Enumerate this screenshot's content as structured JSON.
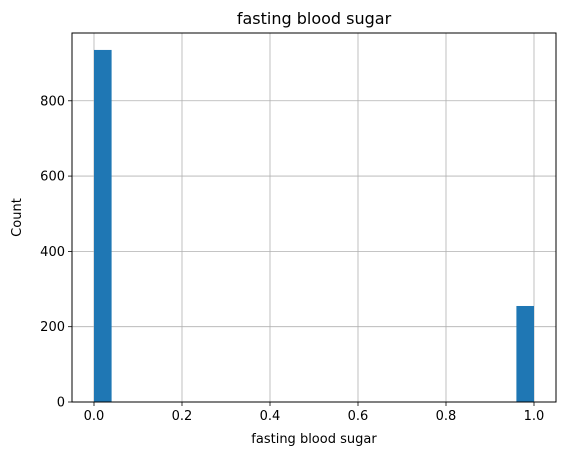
{
  "chart_data": {
    "type": "bar",
    "title": "fasting blood sugar",
    "xlabel": "fasting blood sugar",
    "ylabel": "Count",
    "xlim": [
      -0.05,
      1.05
    ],
    "ylim": [
      0,
      980
    ],
    "xticks": [
      0.0,
      0.2,
      0.4,
      0.6,
      0.8,
      1.0
    ],
    "xtick_labels": [
      "0.0",
      "0.2",
      "0.4",
      "0.6",
      "0.8",
      "1.0"
    ],
    "yticks": [
      0,
      200,
      400,
      600,
      800
    ],
    "ytick_labels": [
      "0",
      "200",
      "400",
      "600",
      "800"
    ],
    "grid": true,
    "bar_color": "#1f77b4",
    "bins": [
      {
        "x0": 0.0,
        "x1": 0.04,
        "count": 935
      },
      {
        "x0": 0.96,
        "x1": 1.0,
        "count": 255
      }
    ]
  }
}
